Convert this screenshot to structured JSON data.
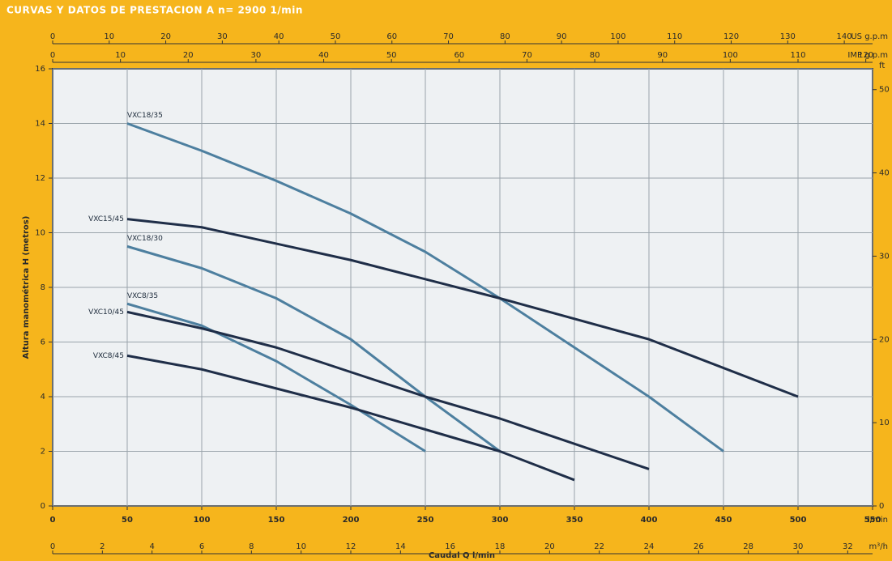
{
  "chart_data": {
    "type": "line",
    "title": "CURVAS Y DATOS DE PRESTACION A n= 2900 1/min",
    "x_label": "Caudal Q l/min",
    "x_unit": "l/min",
    "y_label": "Altura manométrica H (metros)",
    "xlim": [
      0,
      550
    ],
    "xticks": [
      0,
      50,
      100,
      150,
      200,
      250,
      300,
      350,
      400,
      450,
      500,
      550
    ],
    "ylim": [
      0,
      16
    ],
    "yticks": [
      0,
      2,
      4,
      6,
      8,
      10,
      12,
      14,
      16
    ],
    "grid": true,
    "x2_axes": [
      {
        "position": "top",
        "unit": "US g.p.m",
        "xlim": [
          0,
          145
        ],
        "xticks": [
          0,
          10,
          20,
          30,
          40,
          50,
          60,
          70,
          80,
          90,
          100,
          110,
          120,
          130,
          140
        ]
      },
      {
        "position": "top",
        "unit": "IMP g.p.m",
        "xlim": [
          0,
          121
        ],
        "xticks": [
          0,
          10,
          20,
          30,
          40,
          50,
          60,
          70,
          80,
          90,
          100,
          110,
          120
        ]
      },
      {
        "position": "bottom",
        "unit": "m³/h",
        "xlim": [
          0,
          33
        ],
        "xticks": [
          0,
          2,
          4,
          6,
          8,
          10,
          12,
          14,
          16,
          18,
          20,
          22,
          24,
          26,
          28,
          30,
          32
        ]
      }
    ],
    "y2_unit": "ft",
    "y2lim": [
      0,
      52.5
    ],
    "y2ticks": [
      0,
      10,
      20,
      30,
      40,
      50
    ],
    "series": [
      {
        "name": "VXC18/35",
        "color": "#4d7f9f",
        "x": [
          50,
          100,
          150,
          200,
          250,
          300,
          350,
          400,
          450
        ],
        "values": [
          14,
          13,
          11.9,
          10.7,
          9.3,
          7.6,
          5.8,
          4,
          2
        ]
      },
      {
        "name": "VXC15/45",
        "color": "#1f2e48",
        "x": [
          50,
          100,
          200,
          300,
          400,
          500
        ],
        "values": [
          10.5,
          10.2,
          9,
          7.6,
          6.1,
          4
        ]
      },
      {
        "name": "VXC18/30",
        "color": "#4d7f9f",
        "x": [
          50,
          100,
          150,
          200,
          250,
          300
        ],
        "values": [
          9.5,
          8.7,
          7.6,
          6.1,
          4,
          2
        ]
      },
      {
        "name": "VXC8/35",
        "color": "#4d7f9f",
        "x": [
          50,
          100,
          150,
          200,
          250
        ],
        "values": [
          7.4,
          6.6,
          5.3,
          3.7,
          2
        ]
      },
      {
        "name": "VXC10/45",
        "color": "#1f2e48",
        "x": [
          50,
          100,
          150,
          200,
          250,
          300,
          400
        ],
        "values": [
          7.1,
          6.5,
          5.8,
          4.9,
          4,
          3.2,
          1.35
        ]
      },
      {
        "name": "VXC8/45",
        "color": "#1f2e48",
        "x": [
          50,
          100,
          150,
          200,
          250,
          300,
          350
        ],
        "values": [
          5.5,
          5,
          4.3,
          3.6,
          2.8,
          2,
          0.95
        ]
      }
    ]
  }
}
